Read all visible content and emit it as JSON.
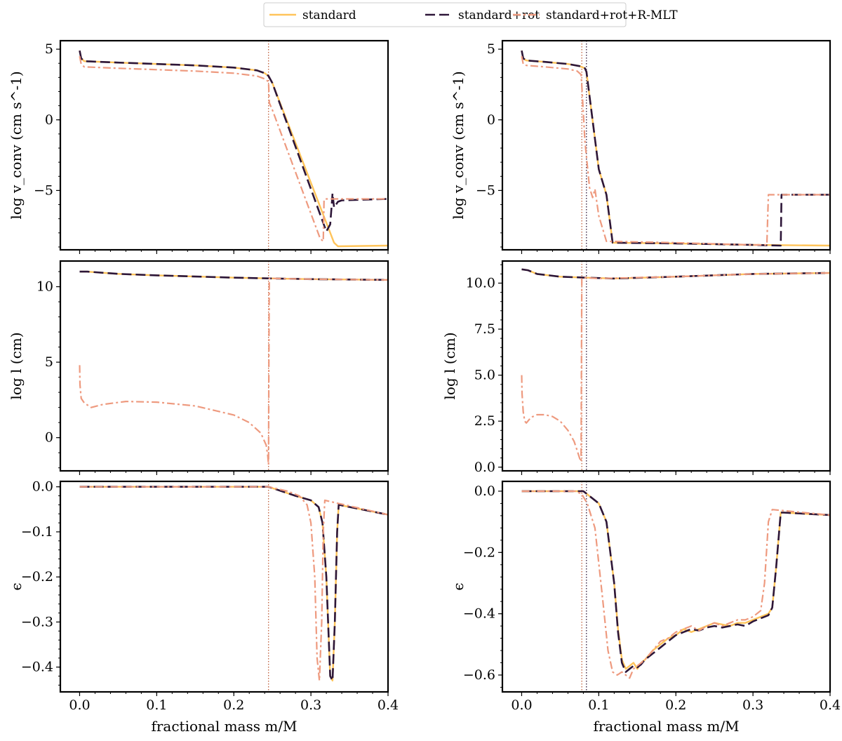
{
  "legend": {
    "entries": [
      {
        "name": "standard",
        "color": "#ffc45a",
        "dash": "solid"
      },
      {
        "name": "standard+rot",
        "color": "#2d1638",
        "dash": "dashed"
      },
      {
        "name": "standard+rot+R-MLT",
        "color": "#ee9a7f",
        "dash": "dashdot"
      }
    ]
  },
  "chart_data": [
    {
      "type": "line",
      "panel": "top-left",
      "ylabel": "log v_conv (cm s^-1)",
      "xlabel": "",
      "xlim": [
        -0.025,
        0.4
      ],
      "ylim": [
        -9.2,
        5.6
      ],
      "xticks": [
        0.0,
        0.1,
        0.2,
        0.3,
        0.4
      ],
      "yticks": [
        5,
        0,
        -5
      ],
      "ytick_labels": [
        "5",
        "0",
        "−5"
      ],
      "xtick_labels_shown": false,
      "vlines": [
        {
          "x": 0.245,
          "color": "#c0603c",
          "style": "dotted"
        }
      ],
      "series": [
        {
          "name": "standard",
          "x": [
            0.0,
            0.002,
            0.006,
            0.05,
            0.1,
            0.15,
            0.2,
            0.23,
            0.24,
            0.245,
            0.25,
            0.33,
            0.335,
            0.4
          ],
          "y": [
            4.9,
            4.35,
            4.15,
            4.05,
            3.95,
            3.85,
            3.7,
            3.5,
            3.3,
            3.1,
            2.6,
            -8.7,
            -8.95,
            -8.9
          ]
        },
        {
          "name": "standard+rot",
          "x": [
            0.0,
            0.002,
            0.006,
            0.05,
            0.1,
            0.15,
            0.2,
            0.23,
            0.24,
            0.245,
            0.25,
            0.32,
            0.325,
            0.327,
            0.328,
            0.33,
            0.335,
            0.34,
            0.4
          ],
          "y": [
            4.9,
            4.35,
            4.15,
            4.05,
            3.95,
            3.85,
            3.7,
            3.5,
            3.3,
            3.1,
            2.6,
            -7.9,
            -7.4,
            -6.0,
            -5.2,
            -6.2,
            -5.8,
            -5.7,
            -5.6
          ]
        },
        {
          "name": "standard+rot+R-MLT",
          "x": [
            0.0,
            0.002,
            0.006,
            0.05,
            0.1,
            0.15,
            0.2,
            0.23,
            0.24,
            0.245,
            0.246,
            0.25,
            0.312,
            0.316,
            0.317,
            0.318,
            0.325,
            0.4
          ],
          "y": [
            4.5,
            3.95,
            3.75,
            3.65,
            3.55,
            3.45,
            3.3,
            3.1,
            2.9,
            2.7,
            1.2,
            0.7,
            -8.4,
            -8.6,
            -5.7,
            -5.6,
            -5.6,
            -5.6
          ]
        }
      ]
    },
    {
      "type": "line",
      "panel": "top-right",
      "ylabel": "log v_conv (cm s^-1)",
      "xlabel": "",
      "xlim": [
        -0.025,
        0.4
      ],
      "ylim": [
        -9.2,
        5.6
      ],
      "xticks": [
        0.0,
        0.1,
        0.2,
        0.3,
        0.4
      ],
      "yticks": [
        5,
        0,
        -5
      ],
      "ytick_labels": [
        "5",
        "0",
        "−5"
      ],
      "xtick_labels_shown": false,
      "vlines": [
        {
          "x": 0.078,
          "color": "#c0603c",
          "style": "dotted"
        },
        {
          "x": 0.084,
          "color": "#2d1638",
          "style": "dotted"
        }
      ],
      "series": [
        {
          "name": "standard",
          "x": [
            0.0,
            0.002,
            0.006,
            0.03,
            0.06,
            0.075,
            0.082,
            0.084,
            0.1,
            0.11,
            0.118,
            0.2,
            0.3,
            0.4
          ],
          "y": [
            4.9,
            4.35,
            4.2,
            4.1,
            3.95,
            3.8,
            3.65,
            3.4,
            -3.5,
            -5.3,
            -8.7,
            -8.75,
            -8.85,
            -8.9
          ]
        },
        {
          "name": "standard+rot",
          "x": [
            0.0,
            0.002,
            0.006,
            0.03,
            0.06,
            0.075,
            0.082,
            0.084,
            0.1,
            0.11,
            0.118,
            0.2,
            0.3,
            0.336,
            0.337,
            0.34,
            0.4
          ],
          "y": [
            4.9,
            4.35,
            4.2,
            4.1,
            3.95,
            3.8,
            3.65,
            3.4,
            -3.5,
            -5.3,
            -8.7,
            -8.75,
            -8.85,
            -8.9,
            -5.3,
            -5.3,
            -5.3
          ]
        },
        {
          "name": "standard+rot+R-MLT",
          "x": [
            0.0,
            0.002,
            0.006,
            0.03,
            0.06,
            0.072,
            0.077,
            0.078,
            0.082,
            0.088,
            0.092,
            0.095,
            0.1,
            0.11,
            0.2,
            0.3,
            0.318,
            0.32,
            0.4
          ],
          "y": [
            4.5,
            3.95,
            3.85,
            3.75,
            3.6,
            3.45,
            3.2,
            2.4,
            -1.5,
            -4.8,
            -5.5,
            -4.9,
            -6.8,
            -8.6,
            -8.7,
            -8.85,
            -8.85,
            -5.3,
            -5.3
          ]
        }
      ]
    },
    {
      "type": "line",
      "panel": "middle-left",
      "ylabel": "log l (cm)",
      "xlabel": "",
      "xlim": [
        -0.025,
        0.4
      ],
      "ylim": [
        -2.2,
        11.7
      ],
      "xticks": [
        0.0,
        0.1,
        0.2,
        0.3,
        0.4
      ],
      "yticks": [
        10,
        5,
        0
      ],
      "ytick_labels": [
        "10",
        "5",
        "0"
      ],
      "xtick_labels_shown": false,
      "vlines": [
        {
          "x": 0.245,
          "color": "#c0603c",
          "style": "dotted"
        }
      ],
      "series": [
        {
          "name": "standard",
          "x": [
            0.0,
            0.01,
            0.05,
            0.1,
            0.2,
            0.245,
            0.3,
            0.4
          ],
          "y": [
            11.0,
            11.0,
            10.85,
            10.75,
            10.6,
            10.55,
            10.5,
            10.45
          ]
        },
        {
          "name": "standard+rot",
          "x": [
            0.0,
            0.01,
            0.05,
            0.1,
            0.2,
            0.245,
            0.3,
            0.4
          ],
          "y": [
            11.0,
            11.0,
            10.85,
            10.75,
            10.6,
            10.55,
            10.5,
            10.45
          ]
        },
        {
          "name": "standard+rot+R-MLT",
          "x": [
            0.0,
            0.0005,
            0.002,
            0.006,
            0.015,
            0.03,
            0.06,
            0.1,
            0.15,
            0.2,
            0.22,
            0.235,
            0.242,
            0.244,
            0.245,
            0.2455,
            0.246,
            0.3,
            0.4
          ],
          "y": [
            4.8,
            3.5,
            2.6,
            2.3,
            2.0,
            2.2,
            2.4,
            2.35,
            2.1,
            1.5,
            1.0,
            0.3,
            -0.5,
            -1.2,
            -1.8,
            5.0,
            10.55,
            10.5,
            10.45
          ]
        }
      ]
    },
    {
      "type": "line",
      "panel": "middle-right",
      "ylabel": "log l (cm)",
      "xlabel": "",
      "xlim": [
        -0.025,
        0.4
      ],
      "ylim": [
        -0.2,
        11.2
      ],
      "xticks": [
        0.0,
        0.1,
        0.2,
        0.3,
        0.4
      ],
      "yticks": [
        10.0,
        7.5,
        5.0,
        2.5,
        0.0
      ],
      "ytick_labels": [
        "10.0",
        "7.5",
        "5.0",
        "2.5",
        "0.0"
      ],
      "xtick_labels_shown": false,
      "vlines": [
        {
          "x": 0.078,
          "color": "#c0603c",
          "style": "dotted"
        },
        {
          "x": 0.084,
          "color": "#2d1638",
          "style": "dotted"
        }
      ],
      "series": [
        {
          "name": "standard",
          "x": [
            0.0,
            0.008,
            0.02,
            0.05,
            0.08,
            0.12,
            0.2,
            0.3,
            0.4
          ],
          "y": [
            10.75,
            10.7,
            10.5,
            10.35,
            10.3,
            10.25,
            10.35,
            10.5,
            10.55
          ]
        },
        {
          "name": "standard+rot",
          "x": [
            0.0,
            0.008,
            0.02,
            0.05,
            0.08,
            0.12,
            0.2,
            0.3,
            0.4
          ],
          "y": [
            10.75,
            10.7,
            10.5,
            10.35,
            10.3,
            10.25,
            10.35,
            10.5,
            10.55
          ]
        },
        {
          "name": "standard+rot+R-MLT",
          "x": [
            0.0,
            0.0005,
            0.002,
            0.004,
            0.006,
            0.008,
            0.012,
            0.02,
            0.03,
            0.04,
            0.05,
            0.06,
            0.068,
            0.072,
            0.075,
            0.077,
            0.0775,
            0.078,
            0.08,
            0.1,
            0.2,
            0.3,
            0.4
          ],
          "y": [
            5.0,
            4.0,
            3.0,
            2.5,
            2.4,
            2.5,
            2.7,
            2.85,
            2.85,
            2.75,
            2.5,
            2.0,
            1.4,
            0.9,
            0.5,
            0.3,
            5.0,
            10.25,
            10.3,
            10.25,
            10.35,
            10.5,
            10.55
          ]
        }
      ]
    },
    {
      "type": "line",
      "panel": "bottom-left",
      "ylabel": "ϵ",
      "xlabel": "fractional mass m/M",
      "xlim": [
        -0.025,
        0.4
      ],
      "ylim": [
        -0.455,
        0.012
      ],
      "xticks": [
        0.0,
        0.1,
        0.2,
        0.3,
        0.4
      ],
      "xtick_labels": [
        "0.0",
        "0.1",
        "0.2",
        "0.3",
        "0.4"
      ],
      "yticks": [
        0.0,
        -0.1,
        -0.2,
        -0.3,
        -0.4
      ],
      "ytick_labels": [
        "0.0",
        "−0.1",
        "−0.2",
        "−0.3",
        "−0.4"
      ],
      "vlines": [
        {
          "x": 0.245,
          "color": "#c0603c",
          "style": "dotted"
        }
      ],
      "series": [
        {
          "name": "standard",
          "x": [
            0.0,
            0.1,
            0.2,
            0.245,
            0.28,
            0.3,
            0.31,
            0.315,
            0.32,
            0.325,
            0.328,
            0.331,
            0.334,
            0.336,
            0.4
          ],
          "y": [
            0.0,
            0.0,
            0.0,
            0.0,
            -0.02,
            -0.03,
            -0.045,
            -0.08,
            -0.2,
            -0.42,
            -0.43,
            -0.3,
            -0.1,
            -0.04,
            -0.062
          ]
        },
        {
          "name": "standard+rot",
          "x": [
            0.0,
            0.1,
            0.2,
            0.245,
            0.28,
            0.3,
            0.31,
            0.315,
            0.32,
            0.325,
            0.328,
            0.331,
            0.334,
            0.336,
            0.4
          ],
          "y": [
            0.0,
            0.0,
            0.0,
            0.0,
            -0.02,
            -0.03,
            -0.045,
            -0.08,
            -0.2,
            -0.42,
            -0.43,
            -0.3,
            -0.1,
            -0.04,
            -0.062
          ]
        },
        {
          "name": "standard+rot+R-MLT",
          "x": [
            0.0,
            0.1,
            0.2,
            0.245,
            0.27,
            0.285,
            0.295,
            0.3,
            0.305,
            0.308,
            0.311,
            0.314,
            0.316,
            0.318,
            0.4
          ],
          "y": [
            0.0,
            0.0,
            0.0,
            0.0,
            -0.01,
            -0.02,
            -0.04,
            -0.08,
            -0.2,
            -0.38,
            -0.43,
            -0.3,
            -0.1,
            -0.03,
            -0.062
          ]
        }
      ]
    },
    {
      "type": "line",
      "panel": "bottom-right",
      "ylabel": "ϵ",
      "xlabel": "fractional mass m/M",
      "xlim": [
        -0.025,
        0.4
      ],
      "ylim": [
        -0.655,
        0.032
      ],
      "xticks": [
        0.0,
        0.1,
        0.2,
        0.3,
        0.4
      ],
      "xtick_labels": [
        "0.0",
        "0.1",
        "0.2",
        "0.3",
        "0.4"
      ],
      "yticks": [
        0.0,
        -0.2,
        -0.4,
        -0.6
      ],
      "ytick_labels": [
        "0.0",
        "−0.2",
        "−0.4",
        "−0.6"
      ],
      "vlines": [
        {
          "x": 0.078,
          "color": "#c0603c",
          "style": "dotted"
        },
        {
          "x": 0.084,
          "color": "#2d1638",
          "style": "dotted"
        }
      ],
      "series": [
        {
          "name": "standard",
          "x": [
            0.0,
            0.04,
            0.08,
            0.09,
            0.1,
            0.11,
            0.12,
            0.125,
            0.13,
            0.135,
            0.14,
            0.145,
            0.15,
            0.155,
            0.16,
            0.17,
            0.18,
            0.19,
            0.2,
            0.21,
            0.22,
            0.23,
            0.24,
            0.25,
            0.26,
            0.27,
            0.28,
            0.29,
            0.3,
            0.31,
            0.32,
            0.325,
            0.33,
            0.336,
            0.34,
            0.4
          ],
          "y": [
            0.0,
            0.0,
            0.0,
            -0.02,
            -0.04,
            -0.1,
            -0.3,
            -0.45,
            -0.55,
            -0.58,
            -0.57,
            -0.56,
            -0.58,
            -0.56,
            -0.55,
            -0.52,
            -0.5,
            -0.48,
            -0.47,
            -0.45,
            -0.46,
            -0.45,
            -0.44,
            -0.43,
            -0.435,
            -0.44,
            -0.43,
            -0.43,
            -0.42,
            -0.41,
            -0.4,
            -0.38,
            -0.25,
            -0.07,
            -0.07,
            -0.078
          ]
        },
        {
          "name": "standard+rot",
          "x": [
            0.0,
            0.04,
            0.08,
            0.09,
            0.1,
            0.11,
            0.12,
            0.125,
            0.13,
            0.135,
            0.14,
            0.145,
            0.15,
            0.155,
            0.16,
            0.17,
            0.18,
            0.19,
            0.2,
            0.21,
            0.22,
            0.23,
            0.24,
            0.25,
            0.26,
            0.27,
            0.28,
            0.29,
            0.3,
            0.31,
            0.32,
            0.325,
            0.33,
            0.336,
            0.34,
            0.4
          ],
          "y": [
            0.0,
            0.0,
            0.0,
            -0.02,
            -0.04,
            -0.1,
            -0.3,
            -0.46,
            -0.56,
            -0.59,
            -0.58,
            -0.57,
            -0.575,
            -0.565,
            -0.55,
            -0.53,
            -0.51,
            -0.49,
            -0.47,
            -0.46,
            -0.45,
            -0.455,
            -0.445,
            -0.44,
            -0.445,
            -0.44,
            -0.435,
            -0.44,
            -0.425,
            -0.415,
            -0.405,
            -0.38,
            -0.25,
            -0.07,
            -0.07,
            -0.078
          ]
        },
        {
          "name": "standard+rot+R-MLT",
          "x": [
            0.0,
            0.04,
            0.07,
            0.078,
            0.085,
            0.095,
            0.105,
            0.112,
            0.118,
            0.124,
            0.13,
            0.135,
            0.14,
            0.145,
            0.15,
            0.16,
            0.17,
            0.18,
            0.19,
            0.2,
            0.21,
            0.22,
            0.23,
            0.24,
            0.25,
            0.26,
            0.27,
            0.28,
            0.29,
            0.3,
            0.31,
            0.315,
            0.32,
            0.325,
            0.4
          ],
          "y": [
            0.0,
            0.0,
            0.0,
            -0.01,
            -0.04,
            -0.12,
            -0.35,
            -0.52,
            -0.59,
            -0.6,
            -0.59,
            -0.6,
            -0.61,
            -0.58,
            -0.57,
            -0.55,
            -0.52,
            -0.49,
            -0.48,
            -0.46,
            -0.45,
            -0.44,
            -0.455,
            -0.44,
            -0.43,
            -0.44,
            -0.43,
            -0.42,
            -0.42,
            -0.41,
            -0.39,
            -0.3,
            -0.1,
            -0.06,
            -0.078
          ]
        }
      ]
    }
  ]
}
